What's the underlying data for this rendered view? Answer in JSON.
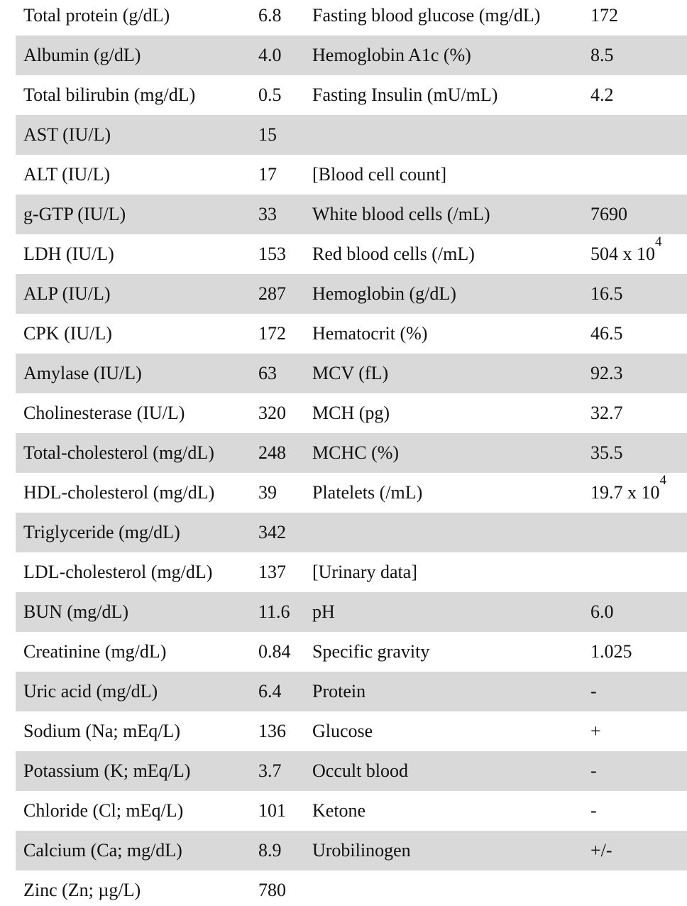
{
  "table": {
    "rows": [
      [
        "Total protein (g/dL)",
        "6.8",
        "Fasting blood glucose (mg/dL)",
        "172"
      ],
      [
        "Albumin (g/dL)",
        "4.0",
        "Hemoglobin A1c (%)",
        "8.5"
      ],
      [
        "Total bilirubin (mg/dL)",
        "0.5",
        "Fasting Insulin (mU/mL)",
        "4.2"
      ],
      [
        "AST (IU/L)",
        "15",
        null,
        null
      ],
      [
        "ALT (IU/L)",
        "17",
        "[Blood cell count]",
        null
      ],
      [
        "g-GTP (IU/L)",
        "33",
        "White blood cells (/mL)",
        "7690"
      ],
      [
        "LDH (IU/L)",
        "153",
        "Red blood cells (/mL)",
        {
          "text": "504 x 10",
          "sup": "4"
        }
      ],
      [
        "ALP (IU/L)",
        "287",
        "Hemoglobin (g/dL)",
        "16.5"
      ],
      [
        "CPK (IU/L)",
        "172",
        "Hematocrit (%)",
        "46.5"
      ],
      [
        "Amylase (IU/L)",
        "63",
        "MCV (fL)",
        "92.3"
      ],
      [
        "Cholinesterase (IU/L)",
        "320",
        "MCH (pg)",
        "32.7"
      ],
      [
        "Total-cholesterol (mg/dL)",
        "248",
        "MCHC (%)",
        "35.5"
      ],
      [
        "HDL-cholesterol (mg/dL)",
        "39",
        "Platelets (/mL)",
        {
          "text": "19.7 x 10",
          "sup": "4"
        }
      ],
      [
        "Triglyceride (mg/dL)",
        "342",
        null,
        null
      ],
      [
        "LDL-cholesterol (mg/dL)",
        "137",
        "[Urinary data]",
        null
      ],
      [
        "BUN (mg/dL)",
        "11.6",
        "pH",
        "6.0"
      ],
      [
        "Creatinine (mg/dL)",
        "0.84",
        "Specific gravity",
        "1.025"
      ],
      [
        "Uric acid (mg/dL)",
        "6.4",
        "Protein",
        "-"
      ],
      [
        "Sodium (Na; mEq/L)",
        "136",
        "Glucose",
        "+"
      ],
      [
        "Potassium (K; mEq/L)",
        "3.7",
        "Occult blood",
        "-"
      ],
      [
        "Chloride (Cl; mEq/L)",
        "101",
        "Ketone",
        "-"
      ],
      [
        "Calcium (Ca; mg/dL)",
        "8.9",
        "Urobilinogen",
        "+/-"
      ],
      [
        "Zinc (Zn; µg/L)",
        "780",
        null,
        null
      ]
    ]
  }
}
